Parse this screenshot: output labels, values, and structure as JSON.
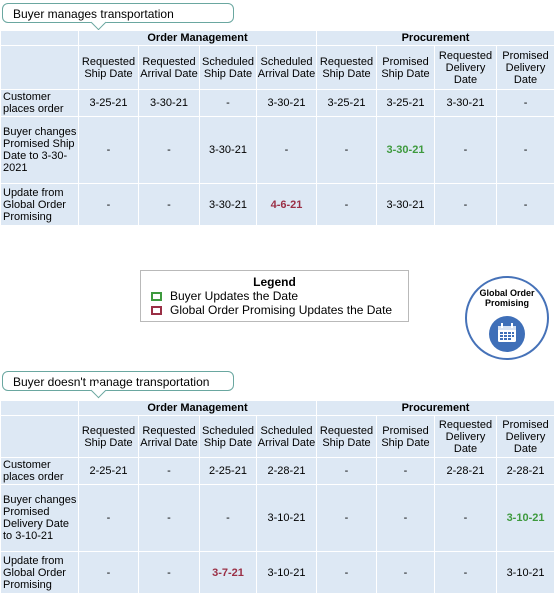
{
  "section1": {
    "callout": "Buyer manages transportation",
    "groups": [
      "Order Management",
      "Procurement"
    ],
    "columns": [
      "Requested Ship Date",
      "Requested Arrival Date",
      "Scheduled Ship Date",
      "Scheduled Arrival Date",
      "Requested Ship Date",
      "Promised Ship Date",
      "Requested Delivery Date",
      "Promised Delivery Date"
    ],
    "rows": [
      {
        "label": "Customer places order",
        "cells": [
          "3-25-21",
          "3-30-21",
          "-",
          "3-30-21",
          "3-25-21",
          "3-25-21",
          "3-30-21",
          "-"
        ]
      },
      {
        "label": "Buyer changes Promised Ship Date to 3-30-2021",
        "cells": [
          "-",
          "-",
          "3-30-21",
          "-",
          "-",
          "3-30-21",
          "-",
          "-"
        ]
      },
      {
        "label": "Update from Global Order Promising",
        "cells": [
          "-",
          "-",
          "3-30-21",
          "4-6-21",
          "-",
          "3-30-21",
          "-",
          "-"
        ]
      }
    ]
  },
  "legend": {
    "title": "Legend",
    "items": [
      "Buyer Updates the Date",
      "Global Order Promising Updates the Date"
    ],
    "colors": {
      "buyer": "#3e9a3e",
      "gop": "#9a2f45"
    }
  },
  "badge": {
    "label": "Global Order Promising",
    "icon": "calendar-icon"
  },
  "section2": {
    "callout": "Buyer doesn't manage transportation",
    "groups": [
      "Order Management",
      "Procurement"
    ],
    "columns": [
      "Requested Ship Date",
      "Requested Arrival Date",
      "Scheduled Ship Date",
      "Scheduled Arrival Date",
      "Requested Ship Date",
      "Promised Ship Date",
      "Requested Delivery Date",
      "Promised Delivery Date"
    ],
    "rows": [
      {
        "label": "Customer places order",
        "cells": [
          "2-25-21",
          "-",
          "2-25-21",
          "2-28-21",
          "-",
          "-",
          "2-28-21",
          "2-28-21"
        ]
      },
      {
        "label": "Buyer changes Promised Delivery Date to 3-10-21",
        "cells": [
          "-",
          "-",
          "-",
          "3-10-21",
          "-",
          "-",
          "-",
          "3-10-21"
        ]
      },
      {
        "label": "Update from Global Order Promising",
        "cells": [
          "-",
          "-",
          "3-7-21",
          "3-10-21",
          "-",
          "-",
          "-",
          "3-10-21"
        ]
      }
    ]
  }
}
